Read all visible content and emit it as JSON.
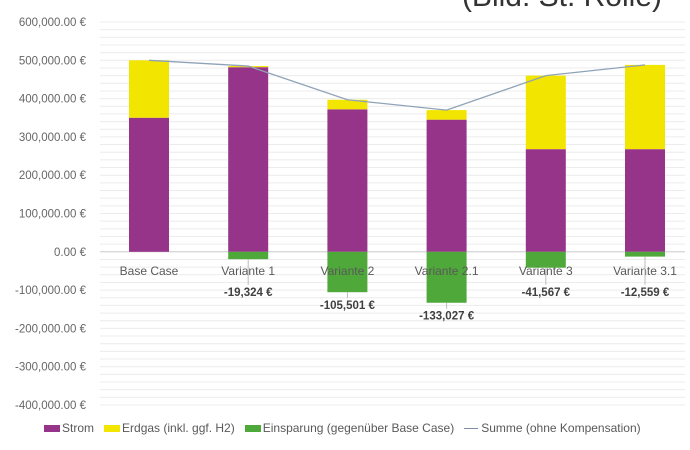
{
  "caption": "(Bild: St. Rolle)",
  "chart_data": {
    "type": "bar",
    "stacked": true,
    "title": "",
    "xlabel": "",
    "ylabel": "",
    "ylim": [
      -400000,
      600000
    ],
    "ytick_step": 100000,
    "yticks": [
      "600,000.00 €",
      "500,000.00 €",
      "400,000.00 €",
      "300,000.00 €",
      "200,000.00 €",
      "100,000.00 €",
      "0.00 €",
      "-100,000.00 €",
      "-200,000.00 €",
      "-300,000.00 €",
      "-400,000.00 €"
    ],
    "ytick_values": [
      600000,
      500000,
      400000,
      300000,
      200000,
      100000,
      0,
      -100000,
      -200000,
      -300000,
      -400000
    ],
    "grid": true,
    "categories": [
      "Base Case",
      "Variante 1",
      "Variante 2",
      "Variante 2.1",
      "Variante 3",
      "Variante 3.1"
    ],
    "series": [
      {
        "name": "Strom",
        "color": "#96348a",
        "values": [
          350000,
          482000,
          372000,
          345000,
          268000,
          268000
        ]
      },
      {
        "name": "Erdgas (inkl. ggf. H2)",
        "color": "#f2e500",
        "values": [
          150000,
          3000,
          25000,
          25000,
          192000,
          220000
        ]
      },
      {
        "name": "Einsparung (gegenüber Base Case)",
        "color": "#4fa83a",
        "values": [
          0,
          -19324,
          -105501,
          -133027,
          -41567,
          -12559
        ]
      },
      {
        "name": "Summe (ohne Kompensation)",
        "type": "line",
        "color": "#8fa3b8",
        "values": [
          500000,
          485000,
          397000,
          370000,
          460000,
          488000
        ]
      }
    ],
    "data_labels": [
      "",
      "-19,324 €",
      "-105,501 €",
      "-133,027 €",
      "-41,567 €",
      "-12,559 €"
    ],
    "legend_position": "bottom"
  }
}
